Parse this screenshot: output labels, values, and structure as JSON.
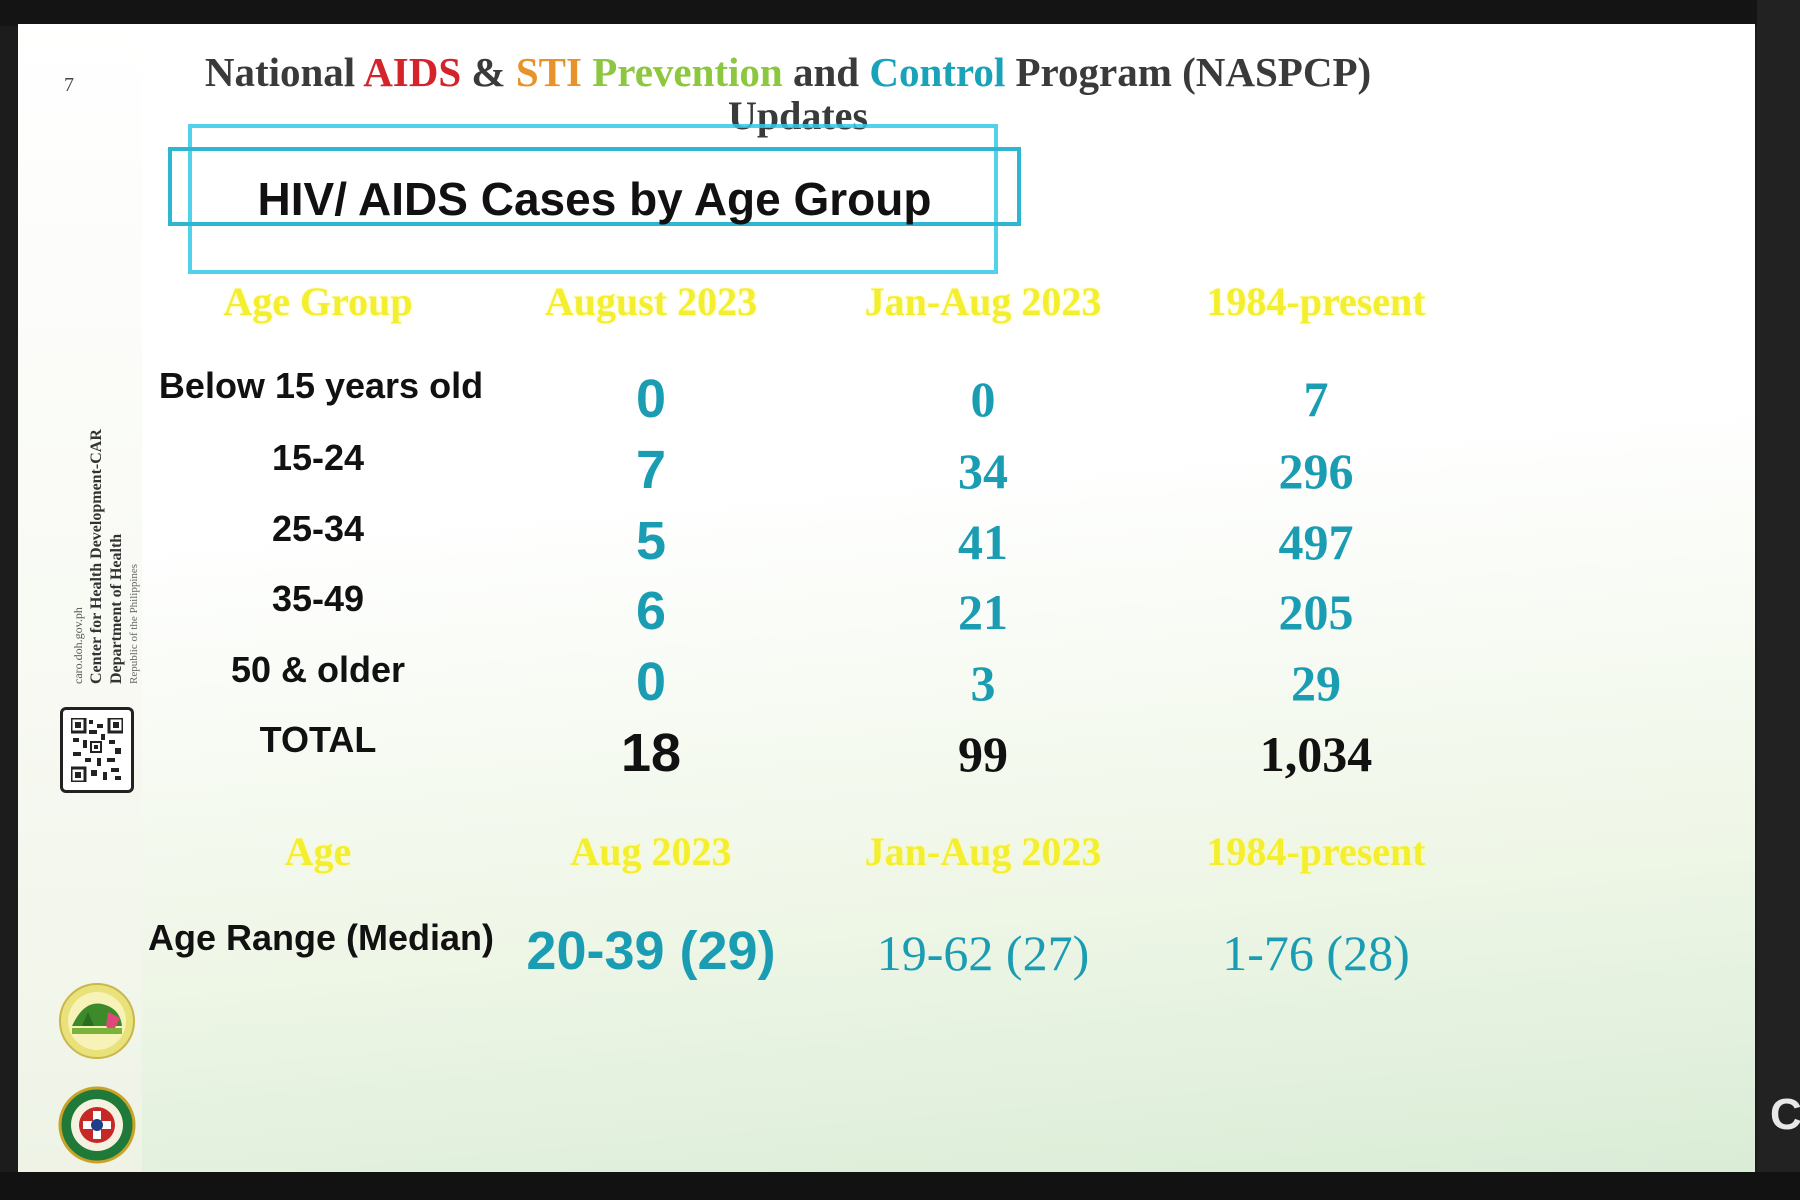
{
  "slide": {
    "number": "7",
    "title_parts": [
      {
        "text": "National ",
        "color": "#3a3a3a"
      },
      {
        "text": "AIDS",
        "color": "#d4232b"
      },
      {
        "text": " & ",
        "color": "#3a3a3a"
      },
      {
        "text": "STI",
        "color": "#e8922a"
      },
      {
        "text": " Prevention",
        "color": "#8dc63f"
      },
      {
        "text": " and ",
        "color": "#3a3a3a"
      },
      {
        "text": "Control",
        "color": "#1aa3b8"
      },
      {
        "text": " Program (NASPCP)",
        "color": "#3a3a3a"
      }
    ],
    "subtitle": "Updates",
    "section_title": "HIV/ AIDS Cases by Age Group"
  },
  "sidebar": {
    "dept_lines": [
      "Republic of the Philippines",
      "Department of Health",
      "Center for Health Development-CAR",
      "caro.doh.gov.ph"
    ]
  },
  "table": {
    "headers": [
      "Age Group",
      "August 2023",
      "Jan-Aug 2023",
      "1984-present"
    ],
    "rows": [
      {
        "label": "Below 15 years old",
        "august": "0",
        "jan_aug": "0",
        "present": "7"
      },
      {
        "label": "15-24",
        "august": "7",
        "jan_aug": "34",
        "present": "296"
      },
      {
        "label": "25-34",
        "august": "5",
        "jan_aug": "41",
        "present": "497"
      },
      {
        "label": "35-49",
        "august": "6",
        "jan_aug": "21",
        "present": "205"
      },
      {
        "label": "50 & older",
        "august": "0",
        "jan_aug": "3",
        "present": "29"
      },
      {
        "label": "TOTAL",
        "august": "18",
        "jan_aug": "99",
        "present": "1,034"
      }
    ]
  },
  "age_table": {
    "headers": [
      "Age",
      "Aug 2023",
      "Jan-Aug 2023",
      "1984-present"
    ],
    "row": {
      "label": "Age Range (Median)",
      "august": "20-39 (29)",
      "jan_aug": "19-62 (27)",
      "present": "1-76 (28)"
    }
  },
  "screen_edge_text": "C",
  "colors": {
    "header_yellow": "#f3ef2e",
    "value_teal": "#1aa3b8",
    "title_box": "#2eb5cf"
  }
}
